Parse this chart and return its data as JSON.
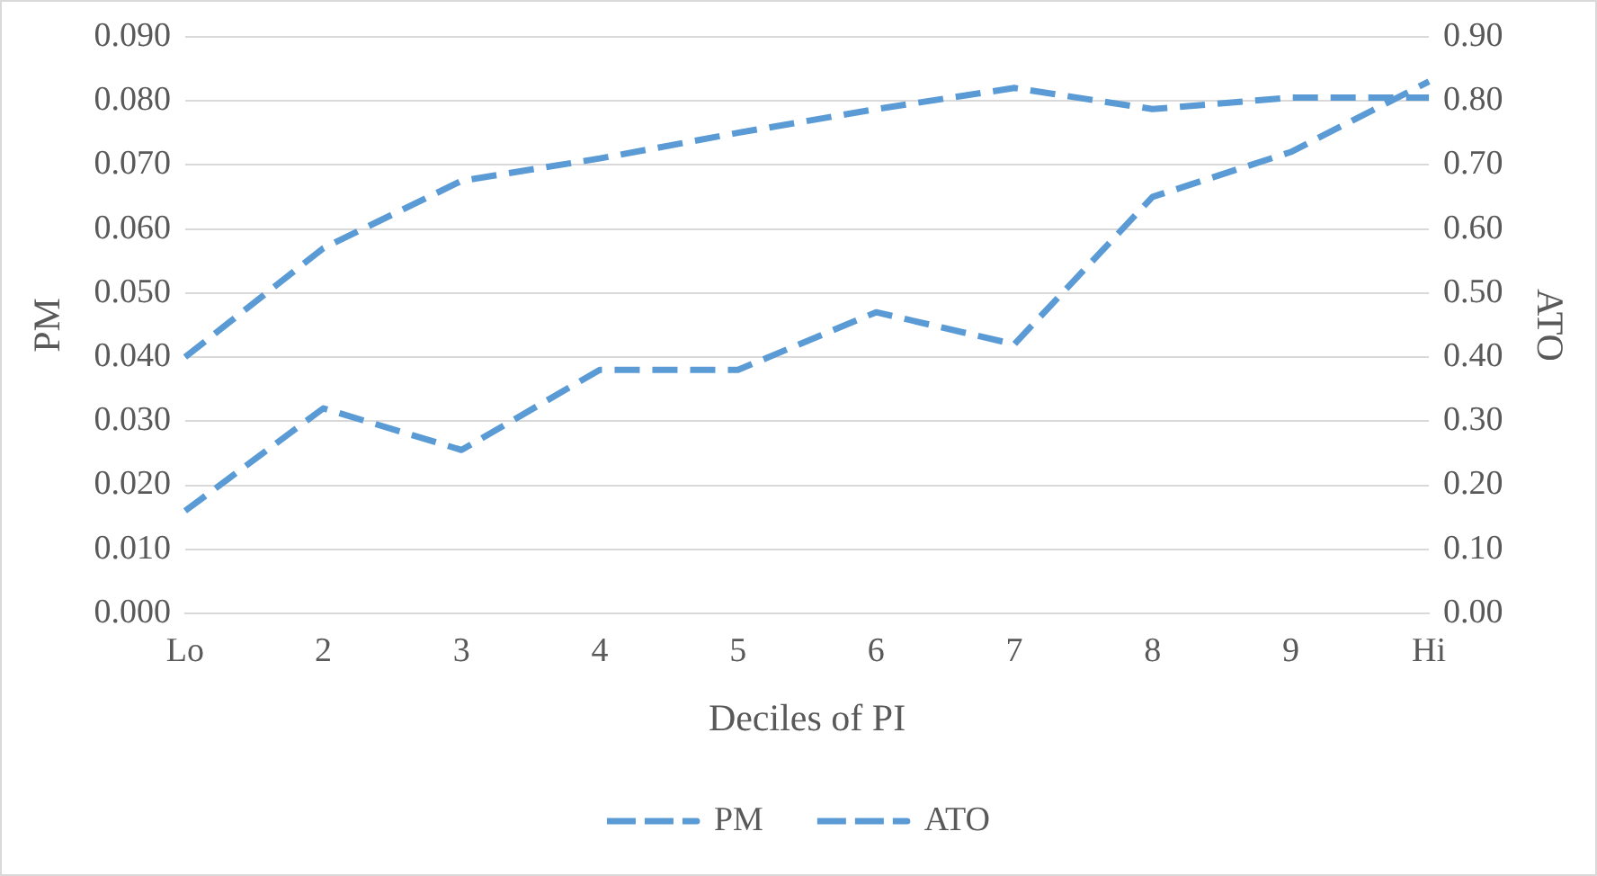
{
  "chart_data": {
    "type": "line",
    "xlabel": "Deciles of PI",
    "ylabel": "PM",
    "y2label": "ATO",
    "categories": [
      "Lo",
      "2",
      "3",
      "4",
      "5",
      "6",
      "7",
      "8",
      "9",
      "Hi"
    ],
    "series": [
      {
        "name": "PM",
        "color": "#5b9bd5",
        "line_style": "dashed",
        "values": [
          0.016,
          0.032,
          0.0255,
          0.038,
          0.038,
          0.047,
          0.042,
          0.065,
          0.072,
          0.083
        ]
      },
      {
        "name": "ATO",
        "color": "#5b9bd5",
        "line_style": "dashed",
        "axis": "y2",
        "values": [
          0.4,
          0.57,
          0.675,
          0.71,
          0.75,
          0.787,
          0.82,
          0.787,
          0.805,
          0.805
        ]
      }
    ],
    "ylim": [
      0,
      0.09
    ],
    "yticks": [
      {
        "value": 0,
        "label": "0.000"
      },
      {
        "value": 0.01,
        "label": "0.010"
      },
      {
        "value": 0.02,
        "label": "0.020"
      },
      {
        "value": 0.03,
        "label": "0.030"
      },
      {
        "value": 0.04,
        "label": "0.040"
      },
      {
        "value": 0.05,
        "label": "0.050"
      },
      {
        "value": 0.06,
        "label": "0.060"
      },
      {
        "value": 0.07,
        "label": "0.070"
      },
      {
        "value": 0.08,
        "label": "0.080"
      },
      {
        "value": 0.09,
        "label": "0.090"
      }
    ],
    "y2lim": [
      0,
      0.9
    ],
    "y2ticks": [
      {
        "value": 0,
        "label": "0.00"
      },
      {
        "value": 0.1,
        "label": "0.10"
      },
      {
        "value": 0.2,
        "label": "0.20"
      },
      {
        "value": 0.3,
        "label": "0.30"
      },
      {
        "value": 0.4,
        "label": "0.40"
      },
      {
        "value": 0.5,
        "label": "0.50"
      },
      {
        "value": 0.6,
        "label": "0.60"
      },
      {
        "value": 0.7,
        "label": "0.70"
      },
      {
        "value": 0.8,
        "label": "0.80"
      },
      {
        "value": 0.9,
        "label": "0.90"
      }
    ],
    "grid": "y",
    "legend": "bottom",
    "marker": "none"
  }
}
